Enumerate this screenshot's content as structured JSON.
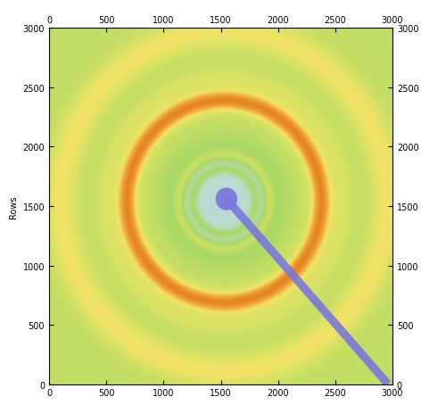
{
  "chart_data": {
    "type": "image",
    "ylabel": "Rows",
    "xlim": [
      0,
      3000
    ],
    "ylim": [
      0,
      3000
    ],
    "xticks": [
      0,
      500,
      1000,
      1500,
      2000,
      2500,
      3000
    ],
    "yticks": [
      0,
      500,
      1000,
      1500,
      2000,
      2500,
      3000
    ],
    "center": [
      1530,
      1540
    ],
    "background": {
      "inner": 0.12,
      "outer": 0.45,
      "radius": 650
    },
    "rings": [
      {
        "radius": 270,
        "width": 25,
        "intensity": 0.12
      },
      {
        "radius": 400,
        "width": 30,
        "intensity": 0.2
      },
      {
        "radius": 850,
        "width": 60,
        "intensity": 0.5
      },
      {
        "radius": 1030,
        "width": 70,
        "intensity": 0.1
      },
      {
        "radius": 1430,
        "width": 90,
        "intensity": 0.22
      }
    ],
    "zlim": [
      0,
      1
    ],
    "colormap": [
      "#b9b6ea",
      "#bcdcd0",
      "#a9d867",
      "#cfe163",
      "#f1e366",
      "#f1a53a",
      "#e07a1c"
    ],
    "beamstop": {
      "center": [
        1550,
        1560
      ],
      "radius": 95,
      "end": [
        2960,
        0
      ],
      "width": 70,
      "color": "#7a78dc"
    }
  }
}
